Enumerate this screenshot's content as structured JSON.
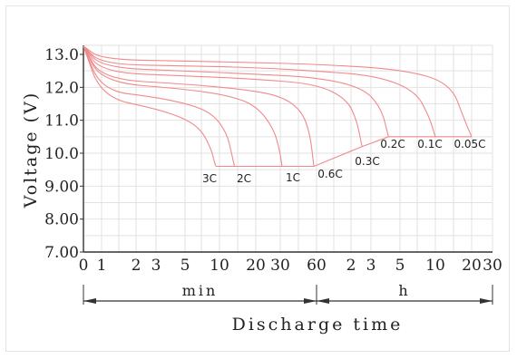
{
  "colors": {
    "curve": "#f08a8a",
    "grid": "#e2e2e2",
    "axis": "#333333",
    "text": "#222222"
  },
  "chart_data": {
    "type": "line",
    "title": "",
    "ylabel": "Voltage (V)",
    "xlabel": "Discharge time",
    "ylim": [
      7.0,
      13.4
    ],
    "y_ticks": [
      "13.0",
      "12.0",
      "11.0",
      "10.0",
      "9.00",
      "8.00",
      "7.00"
    ],
    "y_tick_values": [
      13.0,
      12.0,
      11.0,
      10.0,
      9.0,
      8.0,
      7.0
    ],
    "x_ticks": [
      "0",
      "1",
      "2",
      "3",
      "5",
      "10",
      "20",
      "30",
      "60",
      "2",
      "3",
      "5",
      "10",
      "20",
      "30"
    ],
    "x_tick_minutes": [
      0,
      1,
      2,
      3,
      5,
      10,
      20,
      30,
      60,
      120,
      180,
      300,
      600,
      1200,
      1800
    ],
    "x_segments": [
      {
        "label": "min",
        "from_minutes": 0,
        "to_minutes": 60
      },
      {
        "label": "h",
        "from_minutes": 60,
        "to_minutes": 1800
      }
    ],
    "grid": true,
    "series": [
      {
        "name": "3C",
        "x_minutes": [
          0,
          1,
          3,
          5,
          7,
          8.5,
          9,
          9.3
        ],
        "y": [
          13.25,
          11.7,
          11.35,
          11.05,
          10.7,
          10.1,
          9.75,
          9.6
        ]
      },
      {
        "name": "2C",
        "x_minutes": [
          0,
          1,
          3,
          6,
          9,
          11.5,
          12.5,
          13.3
        ],
        "y": [
          13.25,
          11.9,
          11.7,
          11.45,
          11.15,
          10.6,
          10.05,
          9.6
        ]
      },
      {
        "name": "1C",
        "x_minutes": [
          0,
          1,
          5,
          12,
          20,
          27,
          30,
          31
        ],
        "y": [
          13.25,
          12.15,
          11.95,
          11.75,
          11.45,
          10.75,
          10.0,
          9.6
        ]
      },
      {
        "name": "0.6C",
        "x_minutes": [
          0,
          1,
          5,
          15,
          30,
          45,
          53,
          57
        ],
        "y": [
          13.25,
          12.25,
          12.1,
          11.95,
          11.75,
          11.3,
          10.6,
          9.6
        ]
      },
      {
        "name": "0.3C",
        "x_minutes": [
          0,
          1,
          5,
          20,
          60,
          110,
          135,
          150
        ],
        "y": [
          13.25,
          12.45,
          12.35,
          12.25,
          12.1,
          11.65,
          11.0,
          10.2
        ]
      },
      {
        "name": "0.2C",
        "x_minutes": [
          0,
          1,
          5,
          20,
          60,
          150,
          215,
          245
        ],
        "y": [
          13.25,
          12.6,
          12.5,
          12.4,
          12.3,
          12.0,
          11.4,
          10.5
        ]
      },
      {
        "name": "0.1C",
        "x_minutes": [
          0,
          1,
          5,
          20,
          60,
          200,
          400,
          520,
          600
        ],
        "y": [
          13.25,
          12.7,
          12.65,
          12.6,
          12.5,
          12.35,
          11.9,
          11.2,
          10.5
        ]
      },
      {
        "name": "0.05C",
        "x_minutes": [
          0,
          1,
          5,
          20,
          60,
          300,
          800,
          1050,
          1200
        ],
        "y": [
          13.25,
          12.85,
          12.8,
          12.75,
          12.7,
          12.55,
          12.15,
          11.0,
          10.5
        ]
      }
    ],
    "end_voltage_line": {
      "x_minutes": [
        9.3,
        13.3,
        31,
        57,
        150,
        245,
        600,
        1200
      ],
      "y": [
        9.6,
        9.6,
        9.6,
        9.6,
        10.2,
        10.5,
        10.5,
        10.5
      ]
    }
  }
}
